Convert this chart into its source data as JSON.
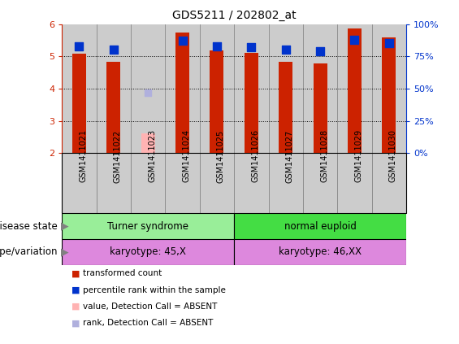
{
  "title": "GDS5211 / 202802_at",
  "samples": [
    "GSM1411021",
    "GSM1411022",
    "GSM1411023",
    "GSM1411024",
    "GSM1411025",
    "GSM1411026",
    "GSM1411027",
    "GSM1411028",
    "GSM1411029",
    "GSM1411030"
  ],
  "transformed_count": [
    5.07,
    4.83,
    null,
    5.75,
    5.18,
    5.12,
    4.83,
    4.77,
    5.87,
    5.58
  ],
  "absent_value": [
    null,
    null,
    2.62,
    null,
    null,
    null,
    null,
    null,
    null,
    null
  ],
  "percentile_rank": [
    83,
    80,
    null,
    87,
    83,
    82,
    80,
    79,
    88,
    85
  ],
  "absent_rank": [
    null,
    null,
    47,
    null,
    null,
    null,
    null,
    null,
    null,
    null
  ],
  "ylim": [
    2.0,
    6.0
  ],
  "yticks": [
    2,
    3,
    4,
    5,
    6
  ],
  "y2ticks_pct": [
    0,
    25,
    50,
    75,
    100
  ],
  "y2labels": [
    "0%",
    "25%",
    "50%",
    "75%",
    "100%"
  ],
  "bar_color": "#cc2200",
  "absent_bar_color": "#ffb3b3",
  "dot_color": "#0033cc",
  "absent_dot_color": "#b0b0dd",
  "group1_samples": [
    0,
    1,
    2,
    3,
    4
  ],
  "group2_samples": [
    5,
    6,
    7,
    8,
    9
  ],
  "group1_label": "Turner syndrome",
  "group2_label": "normal euploid",
  "group1_color": "#99ee99",
  "group2_color": "#44dd44",
  "genotype1_label": "karyotype: 45,X",
  "genotype2_label": "karyotype: 46,XX",
  "genotype_color": "#dd88dd",
  "row1_label": "disease state",
  "row2_label": "genotype/variation",
  "bar_width": 0.4,
  "dot_size": 45,
  "tick_color_left": "#cc2200",
  "tick_color_right": "#0033cc",
  "xticklabel_bg": "#cccccc",
  "col_sep_color": "#888888"
}
